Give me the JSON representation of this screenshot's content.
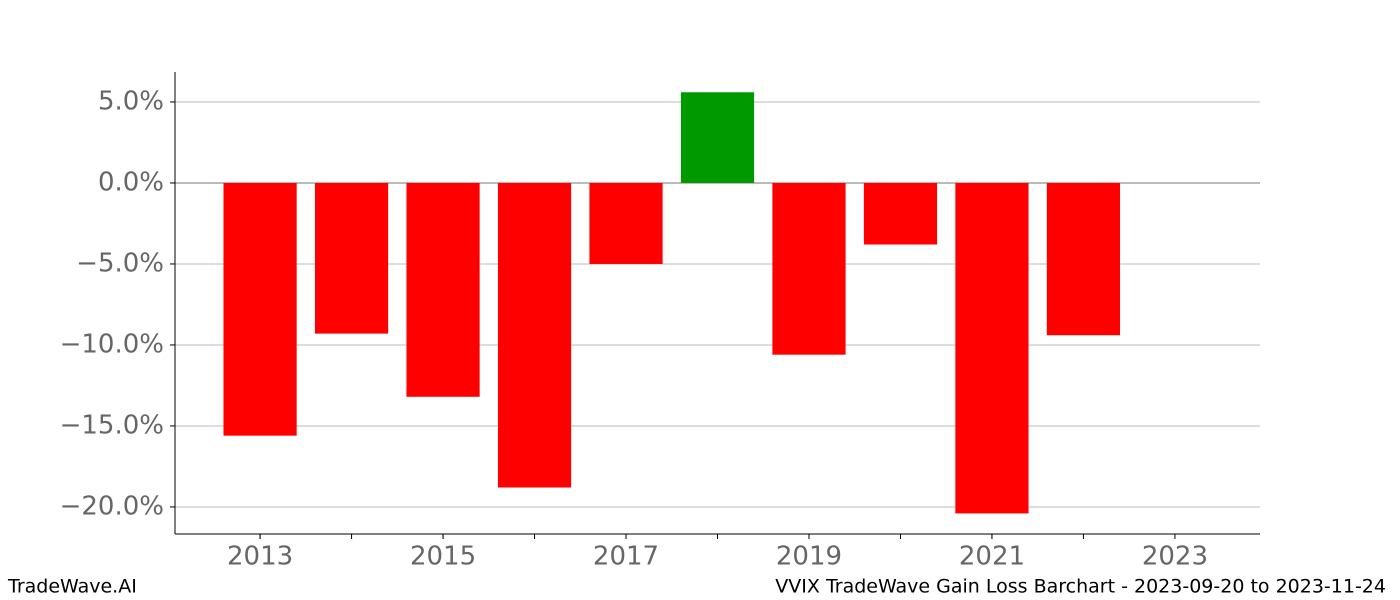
{
  "chart_data": {
    "type": "bar",
    "title": "VVIX TradeWave Gain Loss Barchart - 2023-09-20 to 2023-11-24",
    "watermark": "TradeWave.AI",
    "x": [
      2013,
      2014,
      2015,
      2016,
      2017,
      2018,
      2019,
      2020,
      2021,
      2022
    ],
    "values": [
      -15.6,
      -9.3,
      -13.2,
      -18.8,
      -5.0,
      5.6,
      -10.6,
      -3.8,
      -20.4,
      -9.4
    ],
    "colors": [
      "#ff0000",
      "#ff0000",
      "#ff0000",
      "#ff0000",
      "#ff0000",
      "#009900",
      "#ff0000",
      "#ff0000",
      "#ff0000",
      "#ff0000"
    ],
    "xlim": [
      2012.07,
      2023.93
    ],
    "xticks": [
      2013,
      2015,
      2017,
      2019,
      2021,
      2023
    ],
    "ylim": [
      -21.67,
      6.85
    ],
    "yticks": [
      {
        "value": 5,
        "label": "5.0%"
      },
      {
        "value": 0,
        "label": "0.0%"
      },
      {
        "value": -5,
        "label": "−5.0%"
      },
      {
        "value": -10,
        "label": "−10.0%"
      },
      {
        "value": -15,
        "label": "−15.0%"
      },
      {
        "value": -20,
        "label": "−20.0%"
      }
    ],
    "grid": true
  }
}
